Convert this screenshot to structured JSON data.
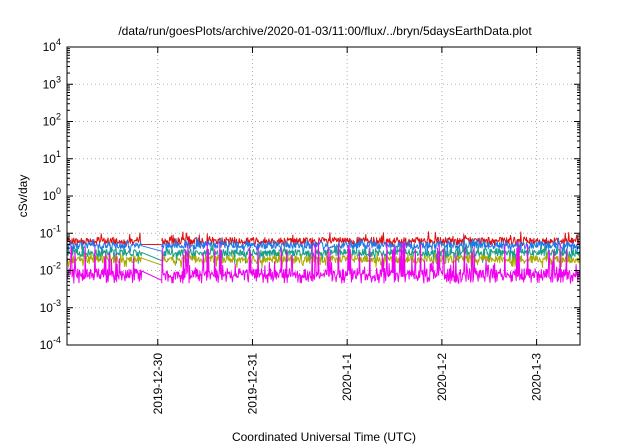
{
  "chart_data": {
    "type": "line",
    "title": "/data/run/goesPlots/archive/2020-01-03/11:00/flux/../bryn/5daysEarthData.plot",
    "xlabel": "Coordinated Universal Time (UTC)",
    "ylabel": "cSv/day",
    "yscale": "log",
    "ylim": [
      0.0001,
      10000
    ],
    "y_ticks": [
      {
        "value": 0.0001,
        "base": "10",
        "exp": "-4"
      },
      {
        "value": 0.001,
        "base": "10",
        "exp": "-3"
      },
      {
        "value": 0.01,
        "base": "10",
        "exp": "-2"
      },
      {
        "value": 0.1,
        "base": "10",
        "exp": "-1"
      },
      {
        "value": 1,
        "base": "10",
        "exp": "0"
      },
      {
        "value": 10,
        "base": "10",
        "exp": "1"
      },
      {
        "value": 100,
        "base": "10",
        "exp": "2"
      },
      {
        "value": 1000,
        "base": "10",
        "exp": "3"
      },
      {
        "value": 10000,
        "base": "10",
        "exp": "4"
      }
    ],
    "xlim": [
      "2019-12-29T01:00",
      "2020-01-03T11:00"
    ],
    "x_ticks": [
      {
        "value": "2019-12-30T00:00",
        "label": "2019-12-30"
      },
      {
        "value": "2019-12-31T00:00",
        "label": "2019-12-31"
      },
      {
        "value": "2020-01-01T00:00",
        "label": "2020-1-1"
      },
      {
        "value": "2020-01-02T00:00",
        "label": "2020-1-2"
      },
      {
        "value": "2020-01-03T00:00",
        "label": "2020-1-3"
      }
    ],
    "grid": true,
    "legend": "none",
    "gap": [
      "2019-12-29T20:00",
      "2019-12-30T01:00"
    ],
    "series": [
      {
        "color": "#e01010",
        "typical": 0.062,
        "low": 0.045,
        "high": 0.11
      },
      {
        "color": "#1f77e8",
        "typical": 0.048,
        "low": 0.028,
        "high": 0.075
      },
      {
        "color": "#1a9f8a",
        "typical": 0.03,
        "low": 0.015,
        "high": 0.05
      },
      {
        "color": "#aaaa00",
        "typical": 0.02,
        "low": 0.012,
        "high": 0.03
      },
      {
        "color": "#f000f0",
        "typical": 0.0085,
        "low": 0.0045,
        "high": 0.06
      }
    ]
  }
}
